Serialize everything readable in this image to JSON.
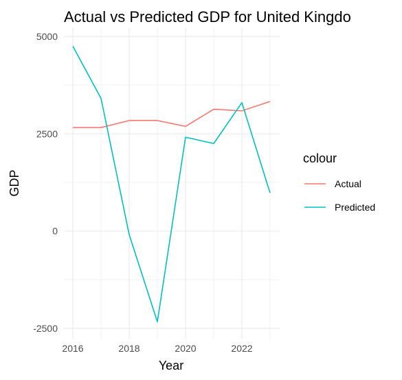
{
  "chart_data": {
    "type": "line",
    "title": "Actual vs Predicted GDP for United Kingdo",
    "xlabel": "Year",
    "ylabel": "GDP",
    "x": [
      2016,
      2017,
      2018,
      2019,
      2020,
      2021,
      2022,
      2023
    ],
    "xticks": [
      "2016",
      "2018",
      "2020",
      "2022"
    ],
    "yticks": [
      "-2500",
      "0",
      "2500",
      "5000"
    ],
    "xlim": [
      2016,
      2023
    ],
    "ylim": [
      -2500,
      5000
    ],
    "grid": true,
    "legend": {
      "title": "colour",
      "placement": "right"
    },
    "series": [
      {
        "name": "Actual",
        "color": "#F8766D",
        "values": [
          2660,
          2660,
          2840,
          2840,
          2690,
          3130,
          3090,
          3330
        ]
      },
      {
        "name": "Predicted",
        "color": "#00BFC4",
        "values": [
          4750,
          3410,
          -90,
          -2330,
          2410,
          2250,
          3300,
          980
        ]
      }
    ]
  }
}
